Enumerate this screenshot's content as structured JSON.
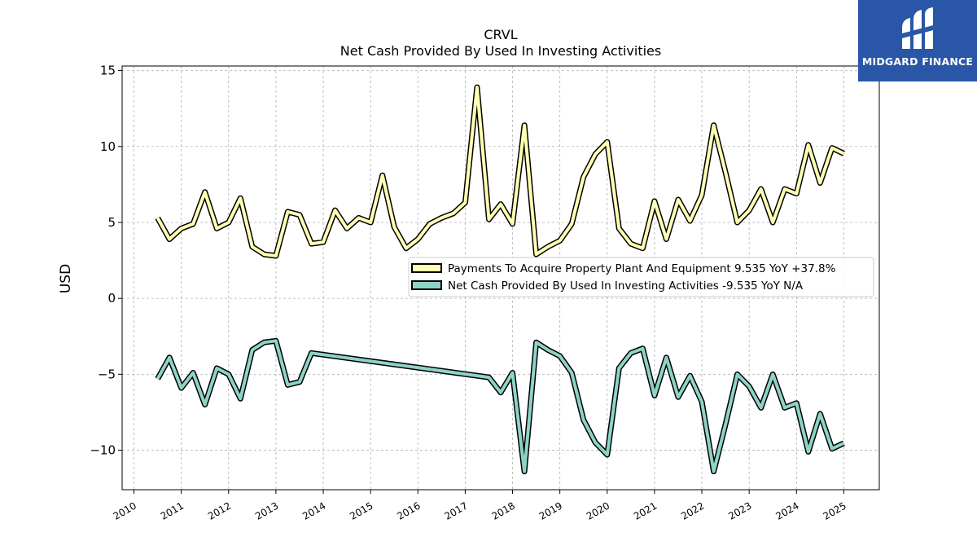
{
  "logo": {
    "text": "MIDGARD FINANCE",
    "icon": "midgard-logo-icon",
    "background": "#2a56a8"
  },
  "chart_data": {
    "type": "line",
    "title": "CRVL",
    "subtitle": "Net Cash Provided By Used In Investing Activities",
    "xlabel": "",
    "ylabel": "USD",
    "xlim": [
      2009.75,
      2025.75
    ],
    "ylim": [
      -12.6,
      15.3
    ],
    "yticks": [
      -10,
      -5,
      0,
      5,
      10,
      15
    ],
    "ytick_labels": [
      "−10",
      "−5",
      "0",
      "5",
      "10",
      "15"
    ],
    "xticks": [
      2010,
      2011,
      2012,
      2013,
      2014,
      2015,
      2016,
      2017,
      2018,
      2019,
      2020,
      2021,
      2022,
      2023,
      2024,
      2025
    ],
    "xtick_labels": [
      "2010",
      "2011",
      "2012",
      "2013",
      "2014",
      "2015",
      "2016",
      "2017",
      "2018",
      "2019",
      "2020",
      "2021",
      "2022",
      "2023",
      "2024",
      "2025"
    ],
    "grid": true,
    "legend_position": "center-right",
    "series": [
      {
        "name": "Payments To Acquire Property Plant And Equipment  9.535 YoY +37.8%",
        "color": "#ffffb3",
        "x": [
          2010.5,
          2010.75,
          2011.0,
          2011.25,
          2011.5,
          2011.75,
          2012.0,
          2012.25,
          2012.5,
          2012.75,
          2013.0,
          2013.25,
          2013.5,
          2013.75,
          2014.0,
          2014.25,
          2014.5,
          2014.75,
          2015.0,
          2015.25,
          2015.5,
          2015.75,
          2016.0,
          2016.25,
          2016.5,
          2016.75,
          2017.0,
          2017.25,
          2017.5,
          2017.75,
          2018.0,
          2018.25,
          2018.5,
          2018.75,
          2019.0,
          2019.25,
          2019.5,
          2019.75,
          2020.0,
          2020.25,
          2020.5,
          2020.75,
          2021.0,
          2021.25,
          2021.5,
          2021.75,
          2022.0,
          2022.25,
          2022.5,
          2022.75,
          2023.0,
          2023.25,
          2023.5,
          2023.75,
          2024.0,
          2024.25,
          2024.5,
          2024.75,
          2025.0
        ],
        "values": [
          5.3,
          3.9,
          4.6,
          4.9,
          7.0,
          4.6,
          5.0,
          6.6,
          3.4,
          2.9,
          2.8,
          5.7,
          5.5,
          3.6,
          3.7,
          5.8,
          4.6,
          5.3,
          5.0,
          8.1,
          4.7,
          3.3,
          3.9,
          4.9,
          5.3,
          5.6,
          6.3,
          13.9,
          5.2,
          6.2,
          4.9,
          11.4,
          2.9,
          3.4,
          3.8,
          4.9,
          8.0,
          9.5,
          10.3,
          4.6,
          3.6,
          3.3,
          6.4,
          3.9,
          6.5,
          5.1,
          6.8,
          11.4,
          8.3,
          5.0,
          5.8,
          7.2,
          5.0,
          7.2,
          6.9,
          10.1,
          7.6,
          9.9,
          9.535
        ]
      },
      {
        "name": "Net Cash Provided By Used In Investing Activities  -9.535 YoY N/A",
        "color": "#8dd3c7",
        "x": [
          2010.5,
          2010.75,
          2011.0,
          2011.25,
          2011.5,
          2011.75,
          2012.0,
          2012.25,
          2012.5,
          2012.75,
          2013.0,
          2013.25,
          2013.5,
          2013.75,
          2017.5,
          2017.75,
          2018.0,
          2018.25,
          2018.5,
          2018.75,
          2019.0,
          2019.25,
          2019.5,
          2019.75,
          2020.0,
          2020.25,
          2020.5,
          2020.75,
          2021.0,
          2021.25,
          2021.5,
          2021.75,
          2022.0,
          2022.25,
          2022.5,
          2022.75,
          2023.0,
          2023.25,
          2023.5,
          2023.75,
          2024.0,
          2024.25,
          2024.5,
          2024.75,
          2025.0
        ],
        "values": [
          -5.3,
          -3.9,
          -5.9,
          -4.9,
          -7.0,
          -4.6,
          -5.0,
          -6.6,
          -3.4,
          -2.9,
          -2.8,
          -5.7,
          -5.5,
          -3.6,
          -5.2,
          -6.2,
          -4.9,
          -11.4,
          -2.9,
          -3.4,
          -3.8,
          -4.9,
          -8.0,
          -9.5,
          -10.3,
          -4.6,
          -3.6,
          -3.3,
          -6.4,
          -3.9,
          -6.5,
          -5.1,
          -6.8,
          -11.4,
          -8.3,
          -5.0,
          -5.8,
          -7.2,
          -5.0,
          -7.2,
          -6.9,
          -10.1,
          -7.6,
          -9.9,
          -9.535
        ]
      }
    ]
  }
}
